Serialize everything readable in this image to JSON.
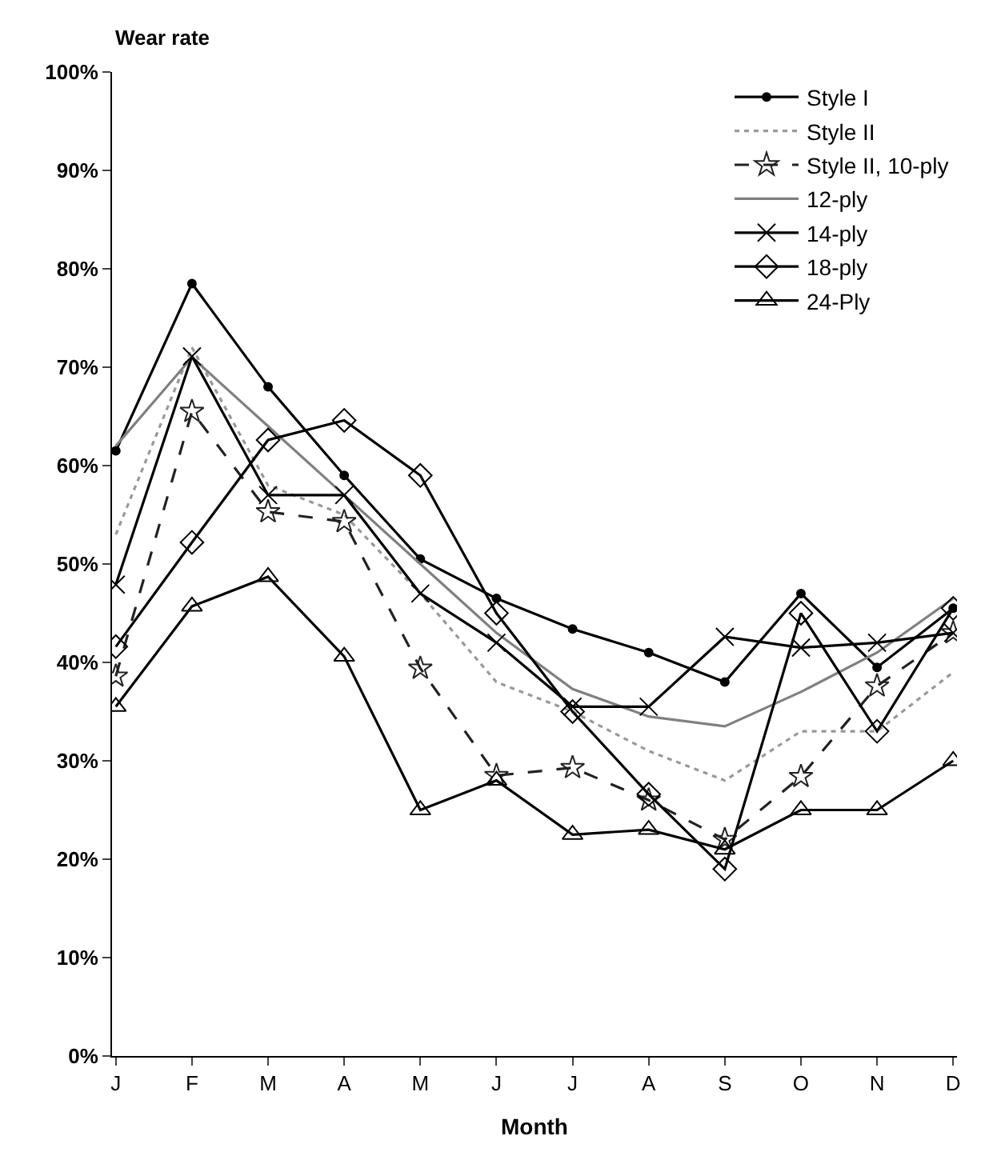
{
  "chart_data": {
    "type": "line",
    "xlabel": "Month",
    "ylabel": "Wear rate",
    "categories": [
      "J",
      "F",
      "M",
      "A",
      "M",
      "J",
      "J",
      "A",
      "S",
      "O",
      "N",
      "D"
    ],
    "ylim": [
      0,
      100
    ],
    "yticks": [
      {
        "value": 0,
        "label": "0%"
      },
      {
        "value": 10,
        "label": "10%"
      },
      {
        "value": 20,
        "label": "20%"
      },
      {
        "value": 30,
        "label": "30%"
      },
      {
        "value": 40,
        "label": "40%"
      },
      {
        "value": 50,
        "label": "50%"
      },
      {
        "value": 60,
        "label": "60%"
      },
      {
        "value": 70,
        "label": "70%"
      },
      {
        "value": 80,
        "label": "80%"
      },
      {
        "value": 90,
        "label": "90%"
      },
      {
        "value": 100,
        "label": "100%"
      }
    ],
    "legend": "top right",
    "series": [
      {
        "name": "Style I",
        "color": "#000000",
        "marker": "circle",
        "line_style": "solid",
        "values": [
          61.5,
          78.5,
          68,
          59,
          50.5,
          46.5,
          43.4,
          41,
          38,
          47,
          39.5,
          45.5
        ]
      },
      {
        "name": "Style II",
        "color": "#999999",
        "marker": "none",
        "line_style": "dotted",
        "values": [
          53,
          72,
          58,
          55,
          47,
          38,
          35,
          31,
          28,
          33,
          33,
          39
        ]
      },
      {
        "name": "Style II, 10-ply",
        "color": "#222222",
        "marker": "star",
        "line_style": "dashed",
        "values": [
          38.6,
          65.5,
          55.3,
          54.3,
          39.4,
          28.5,
          29.3,
          26,
          22,
          28.4,
          37.6,
          43
        ]
      },
      {
        "name": "12-ply",
        "color": "#808080",
        "marker": "none",
        "line_style": "solid",
        "values": [
          62,
          71,
          64,
          57,
          50,
          43,
          37.3,
          34.5,
          33.5,
          37,
          41,
          46.5
        ]
      },
      {
        "name": "14-ply",
        "color": "#000000",
        "marker": "cross",
        "line_style": "solid",
        "values": [
          47.9,
          71.1,
          57,
          57,
          47,
          42,
          35.5,
          35.5,
          42.6,
          41.5,
          42,
          43
        ]
      },
      {
        "name": "18-ply",
        "color": "#000000",
        "marker": "diamond",
        "line_style": "solid",
        "values": [
          41.6,
          52.2,
          62.6,
          64.6,
          59,
          45,
          35,
          26.6,
          19,
          45,
          33,
          45.5
        ]
      },
      {
        "name": "24-Ply",
        "color": "#000000",
        "marker": "triangle",
        "line_style": "solid",
        "values": [
          35.5,
          45.7,
          48.7,
          40.6,
          25,
          28,
          22.5,
          23,
          21,
          25,
          25,
          30
        ]
      }
    ]
  }
}
